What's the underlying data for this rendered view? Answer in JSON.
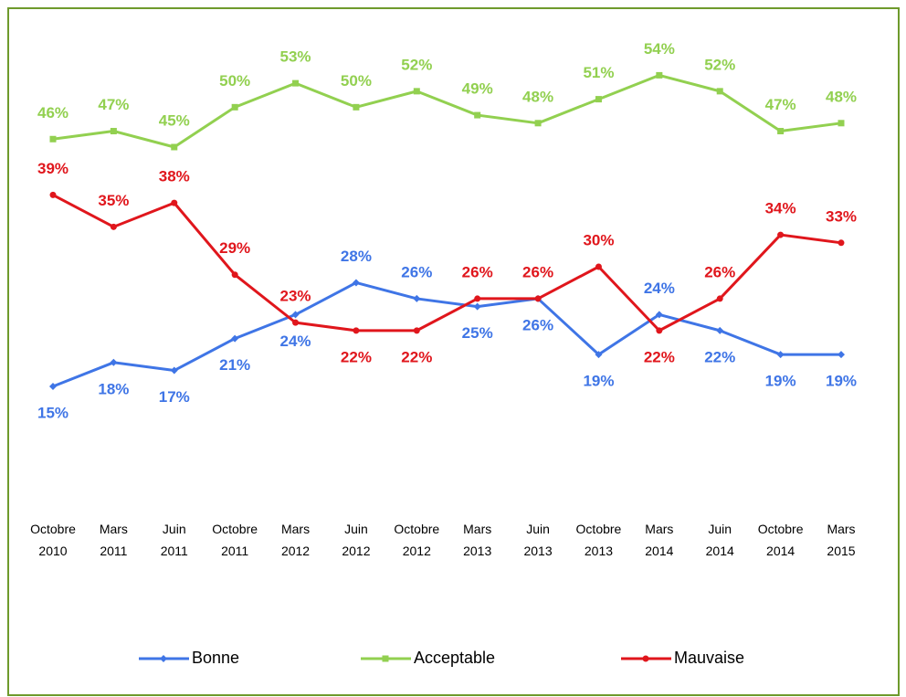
{
  "chart_data": {
    "type": "line",
    "categories": [
      "Octobre 2010",
      "Mars 2011",
      "Juin 2011",
      "Octobre 2011",
      "Mars 2012",
      "Juin 2012",
      "Octobre 2012",
      "Mars 2013",
      "Juin 2013",
      "Octobre 2013",
      "Mars 2014",
      "Juin 2014",
      "Octobre 2014",
      "Mars 2015"
    ],
    "series": [
      {
        "name": "Bonne",
        "color": "#3f75e6",
        "values": [
          15,
          18,
          17,
          21,
          24,
          28,
          26,
          25,
          26,
          19,
          24,
          22,
          19,
          19
        ],
        "value_labels": [
          "15%",
          "18%",
          "17%",
          "21%",
          "24%",
          "28%",
          "26%",
          "25%",
          "26%",
          "19%",
          "24%",
          "22%",
          "19%",
          "19%"
        ]
      },
      {
        "name": "Acceptable",
        "color": "#92d050",
        "values": [
          46,
          47,
          45,
          50,
          53,
          50,
          52,
          49,
          48,
          51,
          54,
          52,
          47,
          48
        ],
        "value_labels": [
          "46%",
          "47%",
          "45%",
          "50%",
          "53%",
          "50%",
          "52%",
          "49%",
          "48%",
          "51%",
          "54%",
          "52%",
          "47%",
          "48%"
        ]
      },
      {
        "name": "Mauvaise",
        "color": "#e0161c",
        "values": [
          39,
          35,
          38,
          29,
          23,
          22,
          22,
          26,
          26,
          30,
          22,
          26,
          34,
          33
        ],
        "value_labels": [
          "39%",
          "35%",
          "38%",
          "29%",
          "23%",
          "22%",
          "22%",
          "26%",
          "26%",
          "30%",
          "22%",
          "26%",
          "34%",
          "33%"
        ]
      }
    ],
    "ylim": [
      0,
      60
    ],
    "grid": false,
    "legend": "bottom"
  }
}
